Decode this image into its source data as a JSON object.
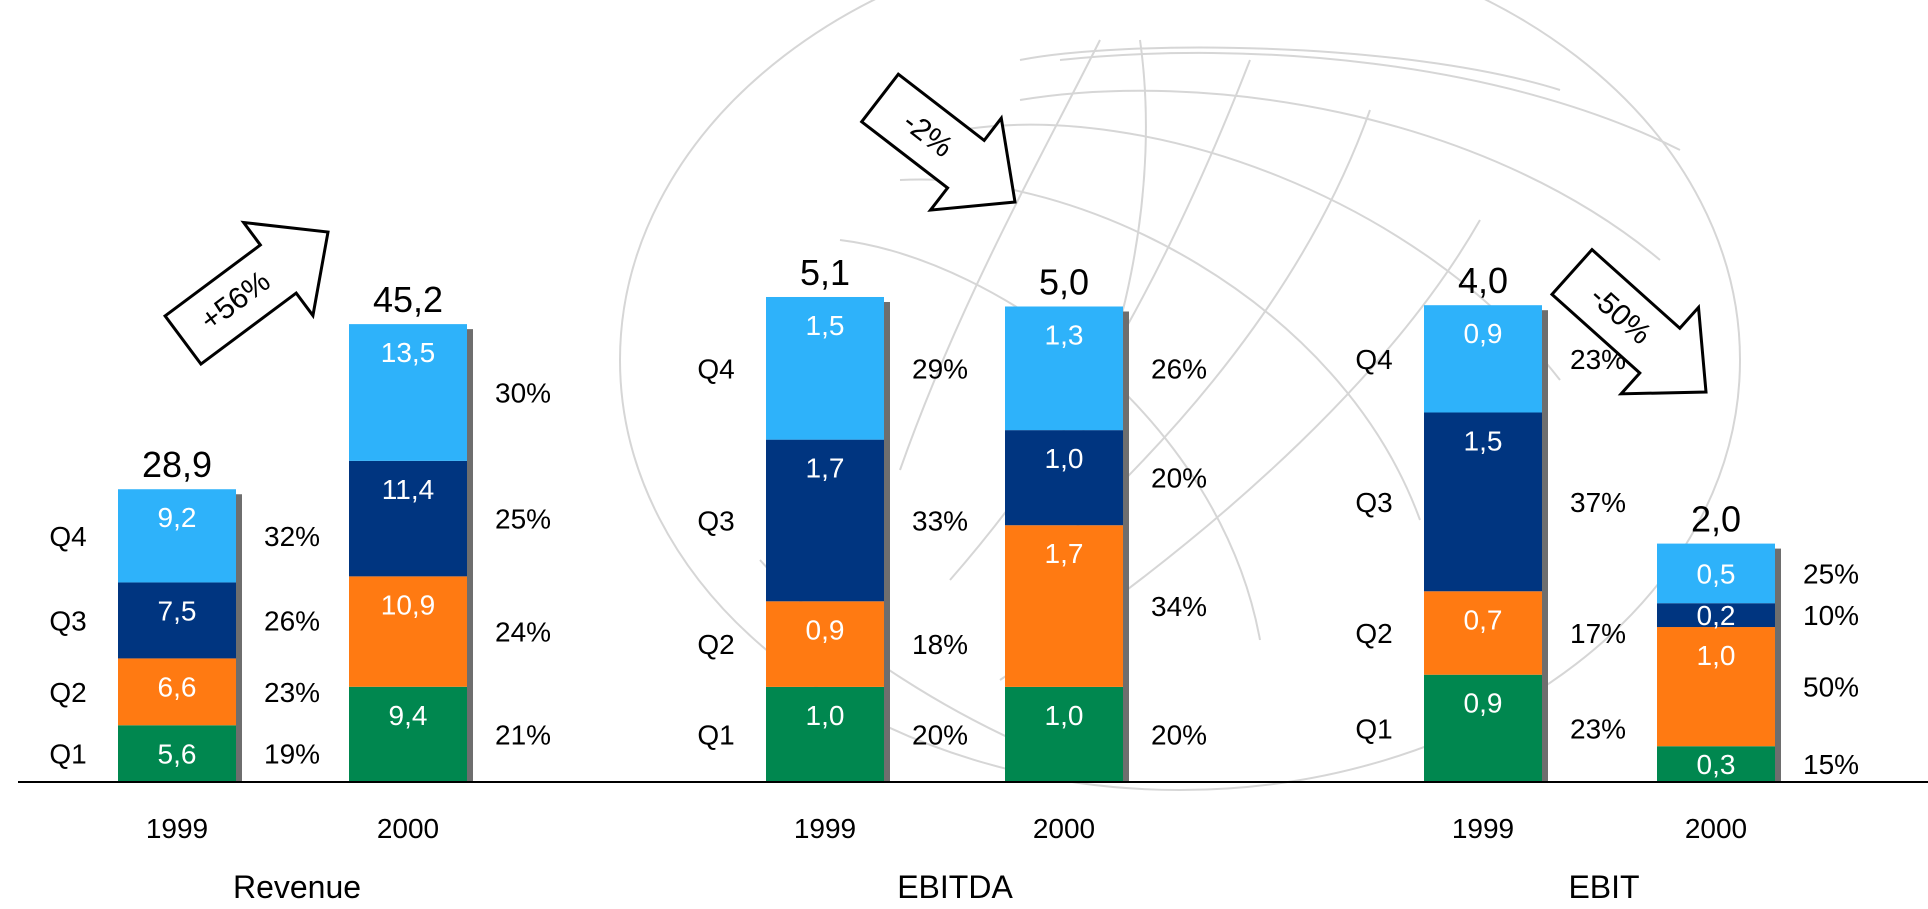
{
  "colors": {
    "Q1": "#00874F",
    "Q2": "#FF7A12",
    "Q3": "#003580",
    "Q4": "#2EB2FA",
    "shadow": "#6E6E6E",
    "axis": "#000000",
    "watermark": "#D6D6D6"
  },
  "chart_data": [
    {
      "type": "bar",
      "stacked": true,
      "title": "Revenue",
      "categories": [
        "1999",
        "2000"
      ],
      "quarter_labels": [
        "Q1",
        "Q2",
        "Q3",
        "Q4"
      ],
      "series": [
        {
          "name": "Q1",
          "values": [
            5.6,
            9.4
          ],
          "labels": [
            "5,6",
            "9,4"
          ],
          "shares": [
            "19%",
            "21%"
          ]
        },
        {
          "name": "Q2",
          "values": [
            6.6,
            10.9
          ],
          "labels": [
            "6,6",
            "10,9"
          ],
          "shares": [
            "23%",
            "24%"
          ]
        },
        {
          "name": "Q3",
          "values": [
            7.5,
            11.4
          ],
          "labels": [
            "7,5",
            "11,4"
          ],
          "shares": [
            "26%",
            "25%"
          ]
        },
        {
          "name": "Q4",
          "values": [
            9.2,
            13.5
          ],
          "labels": [
            "9,2",
            "13,5"
          ],
          "shares": [
            "32%",
            "30%"
          ]
        }
      ],
      "totals": [
        28.9,
        45.2
      ],
      "total_labels": [
        "28,9",
        "45,2"
      ],
      "change": {
        "label": "+56%",
        "direction": "up"
      }
    },
    {
      "type": "bar",
      "stacked": true,
      "title": "EBITDA",
      "categories": [
        "1999",
        "2000"
      ],
      "quarter_labels": [
        "Q1",
        "Q2",
        "Q3",
        "Q4"
      ],
      "series": [
        {
          "name": "Q1",
          "values": [
            1.0,
            1.0
          ],
          "labels": [
            "1,0",
            "1,0"
          ],
          "shares": [
            "20%",
            "20%"
          ]
        },
        {
          "name": "Q2",
          "values": [
            0.9,
            1.7
          ],
          "labels": [
            "0,9",
            "1,7"
          ],
          "shares": [
            "18%",
            "34%"
          ]
        },
        {
          "name": "Q3",
          "values": [
            1.7,
            1.0
          ],
          "labels": [
            "1,7",
            "1,0"
          ],
          "shares": [
            "33%",
            "20%"
          ]
        },
        {
          "name": "Q4",
          "values": [
            1.5,
            1.3
          ],
          "labels": [
            "1,5",
            "1,3"
          ],
          "shares": [
            "29%",
            "26%"
          ]
        }
      ],
      "totals": [
        5.1,
        5.0
      ],
      "total_labels": [
        "5,1",
        "5,0"
      ],
      "change": {
        "label": "-2%",
        "direction": "down"
      }
    },
    {
      "type": "bar",
      "stacked": true,
      "title": "EBIT",
      "categories": [
        "1999",
        "2000"
      ],
      "quarter_labels": [
        "Q1",
        "Q2",
        "Q3",
        "Q4"
      ],
      "series": [
        {
          "name": "Q1",
          "values": [
            0.9,
            0.3
          ],
          "labels": [
            "0,9",
            "0,3"
          ],
          "shares": [
            "23%",
            "15%"
          ]
        },
        {
          "name": "Q2",
          "values": [
            0.7,
            1.0
          ],
          "labels": [
            "0,7",
            "1,0"
          ],
          "shares": [
            "17%",
            "50%"
          ]
        },
        {
          "name": "Q3",
          "values": [
            1.5,
            0.2
          ],
          "labels": [
            "1,5",
            "0,2"
          ],
          "shares": [
            "37%",
            "10%"
          ]
        },
        {
          "name": "Q4",
          "values": [
            0.9,
            0.5
          ],
          "labels": [
            "0,9",
            "0,5"
          ],
          "shares": [
            "23%",
            "25%"
          ]
        }
      ],
      "totals": [
        4.0,
        2.0
      ],
      "total_labels": [
        "4,0",
        "2,0"
      ],
      "change": {
        "label": "-50%",
        "direction": "down"
      }
    }
  ]
}
